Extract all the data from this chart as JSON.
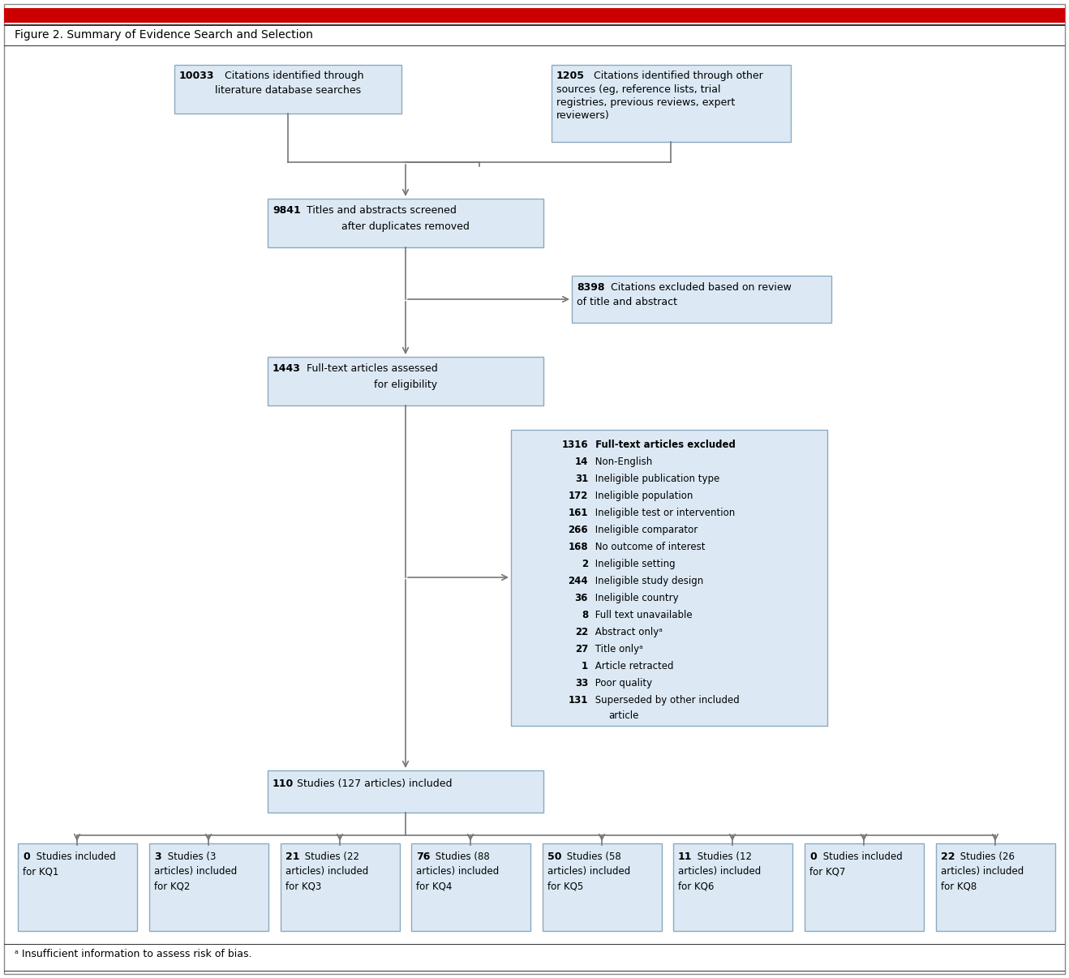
{
  "title": "Figure 2. Summary of Evidence Search and Selection",
  "footnote": "ᵃ Insufficient information to assess risk of bias.",
  "box_fill": "#dce9f5",
  "box_edge": "#8baabf",
  "excl_fill": "#dce9f5",
  "excl_edge": "#8baabf",
  "arrow_color": "#777777",
  "top_red": "#cc0000",
  "top_darkred": "#aa0000",
  "border_color": "#000000",
  "kq_boxes": [
    {
      "bold": "0",
      "text": " Studies included\nfor KQ1"
    },
    {
      "bold": "3",
      "text": " Studies (3\narticles) included\nfor KQ2"
    },
    {
      "bold": "21",
      "text": " Studies (22\narticles) included\nfor KQ3"
    },
    {
      "bold": "76",
      "text": " Studies (88\narticles) included\nfor KQ4"
    },
    {
      "bold": "50",
      "text": " Studies (58\narticles) included\nfor KQ5"
    },
    {
      "bold": "11",
      "text": " Studies (12\narticles) included\nfor KQ6"
    },
    {
      "bold": "0",
      "text": " Studies included\nfor KQ7"
    },
    {
      "bold": "22",
      "text": " Studies (26\narticles) included\nfor KQ8"
    }
  ],
  "excluded_lines": [
    [
      "1316",
      " Full-text articles excluded",
      true
    ],
    [
      "14",
      " Non-English",
      false
    ],
    [
      "31",
      " Ineligible publication type",
      false
    ],
    [
      "172",
      " Ineligible population",
      false
    ],
    [
      "161",
      " Ineligible test or intervention",
      false
    ],
    [
      "266",
      " Ineligible comparator",
      false
    ],
    [
      "168",
      " No outcome of interest",
      false
    ],
    [
      "2",
      " Ineligible setting",
      false
    ],
    [
      "244",
      " Ineligible study design",
      false
    ],
    [
      "36",
      " Ineligible country",
      false
    ],
    [
      "8",
      " Full text unavailable",
      false
    ],
    [
      "22",
      " Abstract onlyᵃ",
      false
    ],
    [
      "27",
      " Title onlyᵃ",
      false
    ],
    [
      "1",
      " Article retracted",
      false
    ],
    [
      "33",
      " Poor quality",
      false
    ],
    [
      "131",
      " Superseded by other included\n   article",
      false
    ]
  ]
}
